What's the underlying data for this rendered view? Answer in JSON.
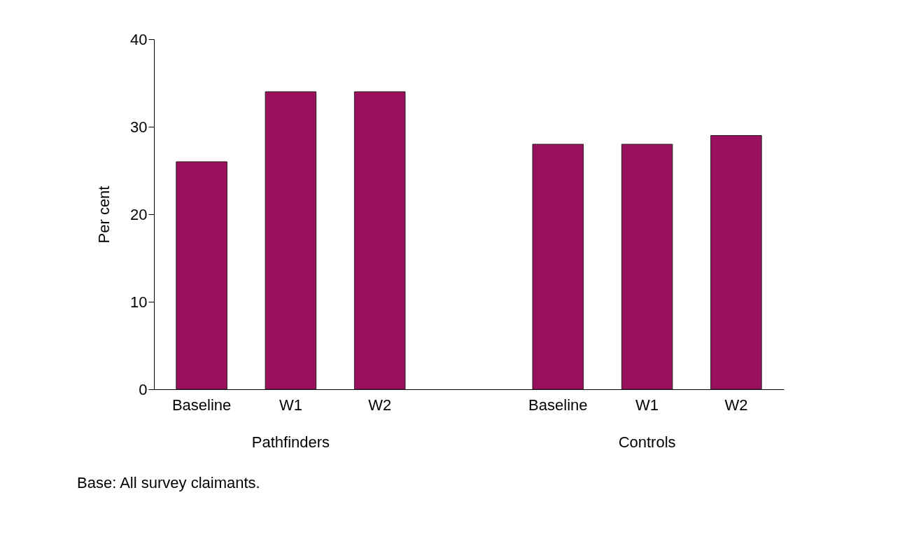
{
  "chart_data": {
    "type": "bar",
    "ylabel": "Per cent",
    "categories": [
      "Baseline",
      "W1",
      "W2",
      null,
      "Baseline",
      "W1",
      "W2"
    ],
    "values": [
      26,
      34,
      34,
      null,
      28,
      28,
      29
    ],
    "color": "#9b0f5f",
    "ylim": [
      0,
      40
    ],
    "yticks": [
      0,
      10,
      20,
      30,
      40
    ],
    "grid": false,
    "annotations": [
      "Pathfinders",
      "Controls",
      "Base: All survey claimants."
    ]
  }
}
